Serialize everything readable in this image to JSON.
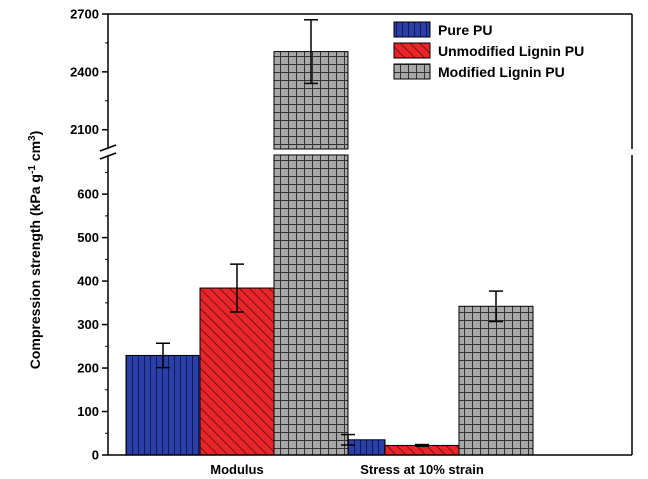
{
  "chart_data": {
    "type": "bar",
    "categories": [
      "Modulus",
      "Stress at 10% strain"
    ],
    "series": [
      {
        "name": "Pure PU",
        "values": [
          229,
          35
        ],
        "errors": [
          28,
          12
        ],
        "color": "#2a3fa8",
        "pattern": "vertical-lines"
      },
      {
        "name": "Unmodified Lignin PU",
        "values": [
          384,
          22
        ],
        "errors": [
          55,
          2
        ],
        "color": "#e8262a",
        "pattern": "diagonal-lines"
      },
      {
        "name": "Modified Lignin PU",
        "values": [
          2505,
          342
        ],
        "errors": [
          165,
          35
        ],
        "color": "#a8a8a8",
        "pattern": "grid"
      }
    ],
    "ylabel_parts": [
      "Compression strength (kPa g",
      "-1",
      " cm",
      "3",
      ")"
    ],
    "xlabel": "",
    "title": "",
    "y_axis_break": {
      "lower_range": [
        0,
        690
      ],
      "upper_range": [
        2000,
        2700
      ]
    },
    "lower_ticks": [
      0,
      100,
      200,
      300,
      400,
      500,
      600
    ],
    "upper_ticks": [
      2100,
      2400,
      2700
    ],
    "legend_position": "top-right",
    "grid": false
  }
}
